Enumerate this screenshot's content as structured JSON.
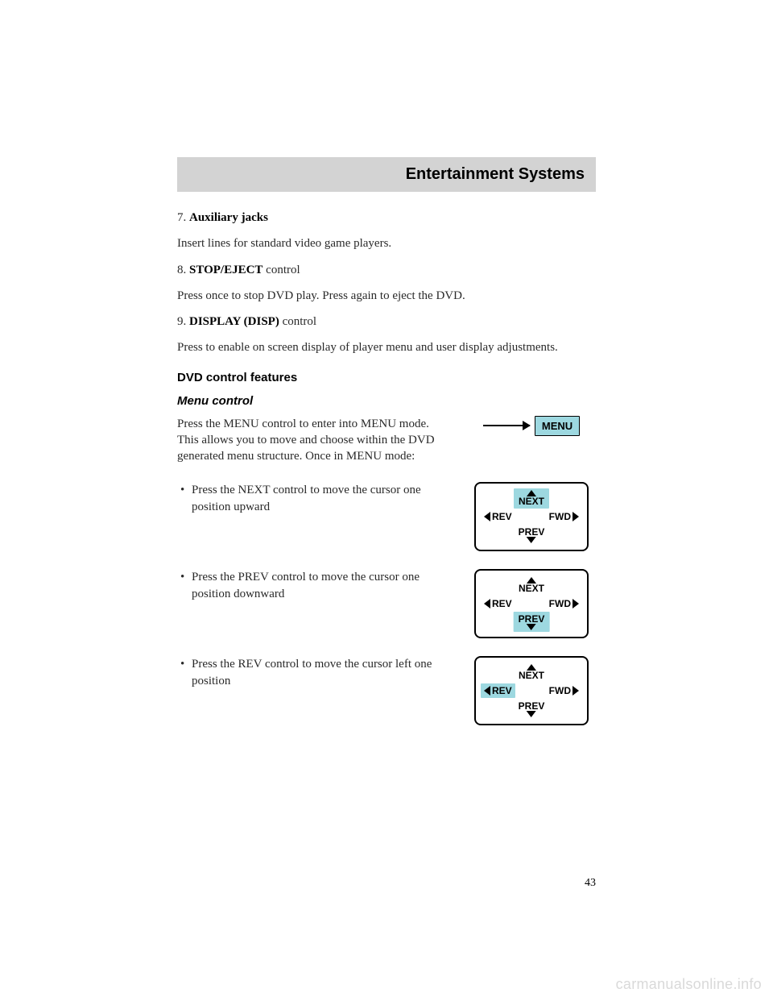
{
  "colors": {
    "header_bg": "#d3d3d3",
    "highlight": "#9dd8e0",
    "text": "#2a2a2a",
    "background": "#ffffff",
    "watermark": "#d9d9d9"
  },
  "fonts": {
    "body_family": "Georgia, 'Times New Roman', serif",
    "heading_family": "Arial, Helvetica, sans-serif",
    "body_size_pt": 11,
    "heading_size_pt": 15
  },
  "header": {
    "title": "Entertainment Systems"
  },
  "items": [
    {
      "num": "7.",
      "bold": "Auxiliary jacks",
      "tail": "",
      "desc": "Insert lines for standard video game players."
    },
    {
      "num": "8.",
      "bold": "STOP/EJECT",
      "tail": " control",
      "desc": "Press once to stop DVD play. Press again to eject the DVD."
    },
    {
      "num": "9.",
      "bold": "DISPLAY (DISP)",
      "tail": " control",
      "desc": "Press to enable on screen display of player menu and user display adjustments."
    }
  ],
  "section_heading": "DVD control features",
  "subsection_heading": "Menu control",
  "menu_intro": "Press the MENU control to enter into MENU mode. This allows you to move and choose within the DVD generated menu structure. Once in MENU mode:",
  "menu_button_label": "MENU",
  "nav_labels": {
    "next": "NEXT",
    "prev": "PREV",
    "rev": "REV",
    "fwd": "FWD"
  },
  "bullets": [
    {
      "text": "Press the NEXT control to move the cursor one position upward",
      "highlight": "next"
    },
    {
      "text": "Press the PREV control to move the cursor one position downward",
      "highlight": "prev"
    },
    {
      "text": "Press the REV control to move the cursor left one position",
      "highlight": "rev"
    }
  ],
  "page_number": "43",
  "watermark": "carmanualsonline.info"
}
